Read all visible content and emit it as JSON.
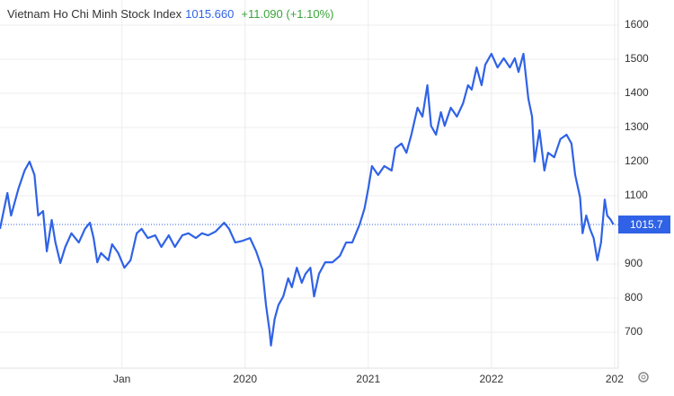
{
  "chart_data": {
    "type": "line",
    "title": "Vietnam Ho Chi Minh Stock Index",
    "last": {
      "value": 1015.66,
      "label": "1015.660"
    },
    "change": "+11.090 (+1.10%)",
    "last_marker": 1015.7,
    "color": "#2f62e6",
    "grid": true,
    "x": [
      2018.01,
      2018.07,
      2018.1,
      2018.16,
      2018.21,
      2018.25,
      2018.29,
      2018.32,
      2018.36,
      2018.39,
      2018.43,
      2018.46,
      2018.5,
      2018.54,
      2018.59,
      2018.65,
      2018.7,
      2018.74,
      2018.77,
      2018.8,
      2018.83,
      2018.89,
      2018.92,
      2018.97,
      2019.02,
      2019.07,
      2019.12,
      2019.16,
      2019.21,
      2019.27,
      2019.32,
      2019.38,
      2019.43,
      2019.49,
      2019.54,
      2019.6,
      2019.65,
      2019.7,
      2019.76,
      2019.83,
      2019.87,
      2019.92,
      2019.98,
      2020.04,
      2020.09,
      2020.14,
      2020.17,
      2020.2,
      2020.21,
      2020.24,
      2020.27,
      2020.31,
      2020.35,
      2020.38,
      2020.42,
      2020.46,
      2020.49,
      2020.53,
      2020.56,
      2020.6,
      2020.65,
      2020.71,
      2020.77,
      2020.82,
      2020.87,
      2020.93,
      2020.97,
      2021.0,
      2021.03,
      2021.08,
      2021.13,
      2021.19,
      2021.22,
      2021.27,
      2021.31,
      2021.35,
      2021.4,
      2021.44,
      2021.48,
      2021.51,
      2021.55,
      2021.59,
      2021.62,
      2021.67,
      2021.72,
      2021.77,
      2021.81,
      2021.84,
      2021.88,
      2021.92,
      2021.95,
      2022.0,
      2022.05,
      2022.1,
      2022.15,
      2022.19,
      2022.22,
      2022.26,
      2022.3,
      2022.33,
      2022.35,
      2022.39,
      2022.43,
      2022.46,
      2022.51,
      2022.56,
      2022.61,
      2022.65,
      2022.68,
      2022.72,
      2022.74,
      2022.77,
      2022.8,
      2022.83,
      2022.86,
      2022.89,
      2022.92,
      2022.94,
      2022.97,
      2022.99
    ],
    "series": [
      {
        "values": [
          1003,
          1108,
          1042,
          1121,
          1174,
          1200,
          1161,
          1042,
          1055,
          937,
          1029,
          963,
          903,
          950,
          990,
          963,
          1003,
          1021,
          976,
          905,
          932,
          911,
          958,
          932,
          889,
          911,
          990,
          1003,
          976,
          984,
          950,
          984,
          950,
          984,
          990,
          976,
          990,
          984,
          995,
          1021,
          1003,
          963,
          968,
          976,
          937,
          884,
          779,
          700,
          661,
          739,
          779,
          805,
          858,
          832,
          889,
          845,
          871,
          889,
          805,
          871,
          905,
          905,
          924,
          963,
          963,
          1016,
          1063,
          1121,
          1187,
          1161,
          1187,
          1174,
          1239,
          1253,
          1226,
          1279,
          1358,
          1332,
          1424,
          1305,
          1279,
          1345,
          1305,
          1358,
          1332,
          1371,
          1424,
          1411,
          1476,
          1424,
          1484,
          1516,
          1476,
          1503,
          1476,
          1503,
          1463,
          1516,
          1384,
          1332,
          1200,
          1292,
          1174,
          1226,
          1213,
          1266,
          1279,
          1253,
          1161,
          1095,
          990,
          1042,
          1003,
          976,
          911,
          963,
          1089,
          1042,
          1029,
          1015.66
        ]
      }
    ],
    "xlim": [
      2018.01,
      2023.03
    ],
    "xticks": [
      {
        "value": 2019,
        "label": "Jan"
      },
      2020,
      2021,
      2022,
      {
        "value": 2023,
        "label": "202"
      }
    ],
    "ylim": [
      594.7,
      1673.7
    ],
    "yticks": [
      700,
      800,
      900,
      1100,
      1200,
      1300,
      1400,
      1500,
      1600
    ]
  }
}
